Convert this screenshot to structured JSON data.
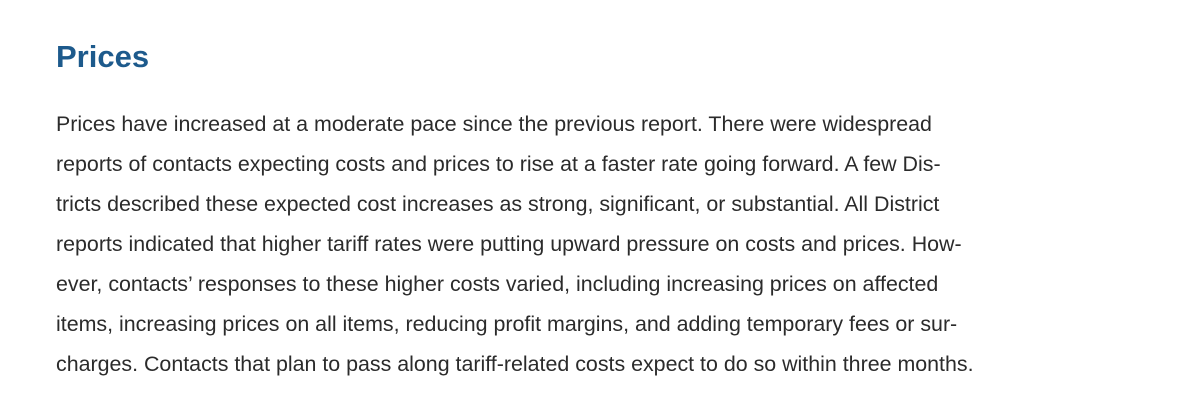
{
  "section": {
    "heading": "Prices",
    "lines": [
      "Prices have increased at a moderate pace since the previous report. There were widespread",
      "reports of contacts expecting costs and prices to rise at a faster rate going forward. A few Dis-",
      "tricts described these expected cost increases as strong, significant, or substantial. All District",
      "reports indicated that higher tariff rates were putting upward pressure on costs and prices. How-",
      "ever, contacts’ responses to these higher costs varied, including increasing prices on affected",
      "items, increasing prices on all items, reducing profit margins, and adding temporary fees or sur-",
      "charges. Contacts that plan to pass along tariff-related costs expect to do so within three months."
    ]
  },
  "colors": {
    "heading": "#1d5a8c",
    "text": "#2b2b2b",
    "background": "#ffffff"
  }
}
